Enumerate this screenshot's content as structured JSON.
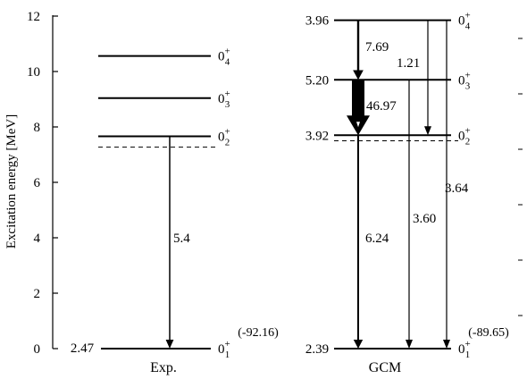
{
  "axis": {
    "ylabel": "Excitation energy [MeV]",
    "ticks": [
      "0",
      "2",
      "4",
      "6",
      "8",
      "10",
      "12"
    ]
  },
  "exp": {
    "title": "Exp.",
    "levels": [
      {
        "energy": 0.0,
        "state": "0",
        "sub": "1",
        "sup": "+"
      },
      {
        "energy": 7.66,
        "state": "0",
        "sub": "2",
        "sup": "+"
      },
      {
        "energy": 9.04,
        "state": "0",
        "sub": "3",
        "sup": "+"
      },
      {
        "energy": 10.56,
        "state": "0",
        "sub": "4",
        "sup": "+"
      }
    ],
    "threshold_energy": 7.27,
    "radius_ground": "2.47",
    "binding": "(-92.16)",
    "transitions": [
      {
        "from": 7.66,
        "to": 0.0,
        "label": "5.4",
        "width": 1.5
      }
    ]
  },
  "gcm": {
    "title": "GCM",
    "levels": [
      {
        "energy": 0.0,
        "state": "0",
        "sub": "1",
        "sup": "+",
        "radius": "2.39"
      },
      {
        "energy": 7.7,
        "state": "0",
        "sub": "2",
        "sup": "+",
        "radius": "3.92"
      },
      {
        "energy": 9.7,
        "state": "0",
        "sub": "3",
        "sup": "+",
        "radius": "5.20"
      },
      {
        "energy": 11.85,
        "state": "0",
        "sub": "4",
        "sup": "+",
        "radius": "3.96"
      }
    ],
    "threshold_energy": 7.5,
    "binding": "(-89.65)",
    "transitions": [
      {
        "label": "7.69"
      },
      {
        "label": "1.21"
      },
      {
        "label": "46.97"
      },
      {
        "label": "6.24"
      },
      {
        "label": "3.60"
      },
      {
        "label": "3.64"
      }
    ]
  }
}
